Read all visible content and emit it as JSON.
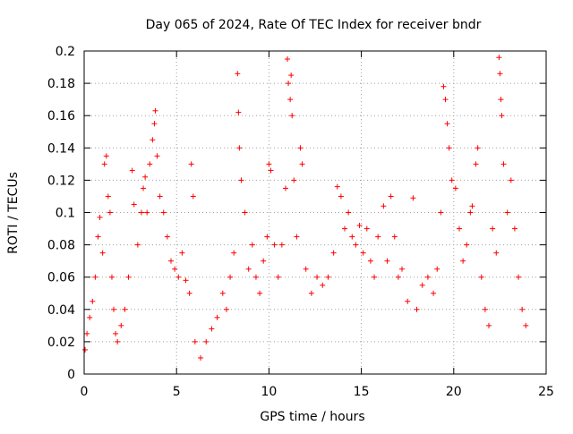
{
  "chart_data": {
    "type": "scatter",
    "title": "Day 065 of 2024, Rate Of TEC Index for receiver bndr",
    "xlabel": "GPS time / hours",
    "ylabel": "ROTI / TECUs",
    "xlim": [
      0,
      25
    ],
    "ylim": [
      0,
      0.2
    ],
    "x_ticks": [
      0,
      5,
      10,
      15,
      20,
      25
    ],
    "y_ticks": [
      0,
      0.02,
      0.04,
      0.06,
      0.08,
      0.1,
      0.12,
      0.14,
      0.16,
      0.18,
      0.2
    ],
    "grid": true,
    "marker": "+",
    "color": "#ff0000",
    "series": [
      {
        "points": [
          [
            0.05,
            0.015
          ],
          [
            0.15,
            0.025
          ],
          [
            0.3,
            0.035
          ],
          [
            0.45,
            0.045
          ],
          [
            0.6,
            0.06
          ],
          [
            0.75,
            0.085
          ],
          [
            0.85,
            0.097
          ],
          [
            1.0,
            0.075
          ],
          [
            1.1,
            0.13
          ],
          [
            1.2,
            0.135
          ],
          [
            1.3,
            0.11
          ],
          [
            1.4,
            0.1
          ],
          [
            1.5,
            0.06
          ],
          [
            1.6,
            0.04
          ],
          [
            1.7,
            0.025
          ],
          [
            1.8,
            0.02
          ],
          [
            2.0,
            0.03
          ],
          [
            2.2,
            0.04
          ],
          [
            2.4,
            0.06
          ],
          [
            2.6,
            0.126
          ],
          [
            2.7,
            0.105
          ],
          [
            2.9,
            0.08
          ],
          [
            3.1,
            0.1
          ],
          [
            3.2,
            0.115
          ],
          [
            3.3,
            0.122
          ],
          [
            3.4,
            0.1
          ],
          [
            3.55,
            0.13
          ],
          [
            3.7,
            0.145
          ],
          [
            3.8,
            0.155
          ],
          [
            3.85,
            0.163
          ],
          [
            3.95,
            0.135
          ],
          [
            4.1,
            0.11
          ],
          [
            4.3,
            0.1
          ],
          [
            4.5,
            0.085
          ],
          [
            4.7,
            0.07
          ],
          [
            4.9,
            0.065
          ],
          [
            5.1,
            0.06
          ],
          [
            5.3,
            0.075
          ],
          [
            5.5,
            0.058
          ],
          [
            5.7,
            0.05
          ],
          [
            5.8,
            0.13
          ],
          [
            5.9,
            0.11
          ],
          [
            6.0,
            0.02
          ],
          [
            6.3,
            0.01
          ],
          [
            6.6,
            0.02
          ],
          [
            6.9,
            0.028
          ],
          [
            7.2,
            0.035
          ],
          [
            7.5,
            0.05
          ],
          [
            7.7,
            0.04
          ],
          [
            7.9,
            0.06
          ],
          [
            8.1,
            0.075
          ],
          [
            8.3,
            0.186
          ],
          [
            8.35,
            0.162
          ],
          [
            8.4,
            0.14
          ],
          [
            8.5,
            0.12
          ],
          [
            8.7,
            0.1
          ],
          [
            8.9,
            0.065
          ],
          [
            9.1,
            0.08
          ],
          [
            9.3,
            0.06
          ],
          [
            9.5,
            0.05
          ],
          [
            9.7,
            0.07
          ],
          [
            9.9,
            0.085
          ],
          [
            10.0,
            0.13
          ],
          [
            10.1,
            0.126
          ],
          [
            10.3,
            0.08
          ],
          [
            10.5,
            0.06
          ],
          [
            10.7,
            0.08
          ],
          [
            10.9,
            0.115
          ],
          [
            11.0,
            0.195
          ],
          [
            11.05,
            0.18
          ],
          [
            11.15,
            0.17
          ],
          [
            11.2,
            0.185
          ],
          [
            11.25,
            0.16
          ],
          [
            11.35,
            0.12
          ],
          [
            11.5,
            0.085
          ],
          [
            11.7,
            0.14
          ],
          [
            11.8,
            0.13
          ],
          [
            12.0,
            0.065
          ],
          [
            12.3,
            0.05
          ],
          [
            12.6,
            0.06
          ],
          [
            12.9,
            0.055
          ],
          [
            13.2,
            0.06
          ],
          [
            13.5,
            0.075
          ],
          [
            13.7,
            0.116
          ],
          [
            13.9,
            0.11
          ],
          [
            14.1,
            0.09
          ],
          [
            14.3,
            0.1
          ],
          [
            14.5,
            0.085
          ],
          [
            14.7,
            0.08
          ],
          [
            14.9,
            0.092
          ],
          [
            15.1,
            0.075
          ],
          [
            15.3,
            0.09
          ],
          [
            15.5,
            0.07
          ],
          [
            15.7,
            0.06
          ],
          [
            15.9,
            0.085
          ],
          [
            16.2,
            0.104
          ],
          [
            16.4,
            0.07
          ],
          [
            16.6,
            0.11
          ],
          [
            16.8,
            0.085
          ],
          [
            17.0,
            0.06
          ],
          [
            17.2,
            0.065
          ],
          [
            17.5,
            0.045
          ],
          [
            17.8,
            0.109
          ],
          [
            18.0,
            0.04
          ],
          [
            18.3,
            0.055
          ],
          [
            18.6,
            0.06
          ],
          [
            18.9,
            0.05
          ],
          [
            19.1,
            0.065
          ],
          [
            19.3,
            0.1
          ],
          [
            19.45,
            0.178
          ],
          [
            19.55,
            0.17
          ],
          [
            19.65,
            0.155
          ],
          [
            19.75,
            0.14
          ],
          [
            19.9,
            0.12
          ],
          [
            20.1,
            0.115
          ],
          [
            20.3,
            0.09
          ],
          [
            20.5,
            0.07
          ],
          [
            20.7,
            0.08
          ],
          [
            20.9,
            0.1
          ],
          [
            21.0,
            0.104
          ],
          [
            21.2,
            0.13
          ],
          [
            21.3,
            0.14
          ],
          [
            21.5,
            0.06
          ],
          [
            21.7,
            0.04
          ],
          [
            21.9,
            0.03
          ],
          [
            22.1,
            0.09
          ],
          [
            22.3,
            0.075
          ],
          [
            22.45,
            0.196
          ],
          [
            22.5,
            0.186
          ],
          [
            22.55,
            0.17
          ],
          [
            22.6,
            0.16
          ],
          [
            22.7,
            0.13
          ],
          [
            22.9,
            0.1
          ],
          [
            23.1,
            0.12
          ],
          [
            23.3,
            0.09
          ],
          [
            23.5,
            0.06
          ],
          [
            23.7,
            0.04
          ],
          [
            23.9,
            0.03
          ]
        ]
      }
    ]
  }
}
